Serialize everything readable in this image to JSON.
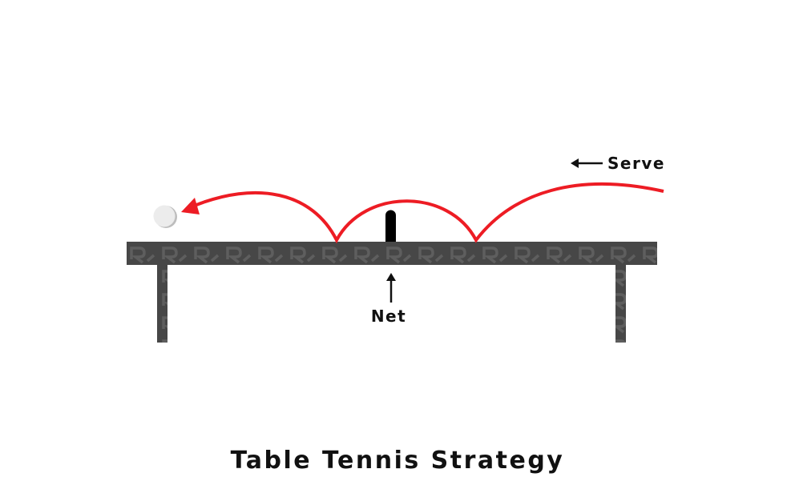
{
  "title": "Table Tennis Strategy",
  "labels": {
    "serve": "Serve",
    "net": "Net"
  },
  "colors": {
    "trajectory": "#ed1c24",
    "table": "#474747",
    "table_pattern": "#5e5e5e",
    "net": "#000000",
    "ball": "#ececec",
    "text": "#111111"
  },
  "icons": {
    "serve_arrow": "arrow-left-icon",
    "net_arrow": "arrow-up-icon"
  }
}
